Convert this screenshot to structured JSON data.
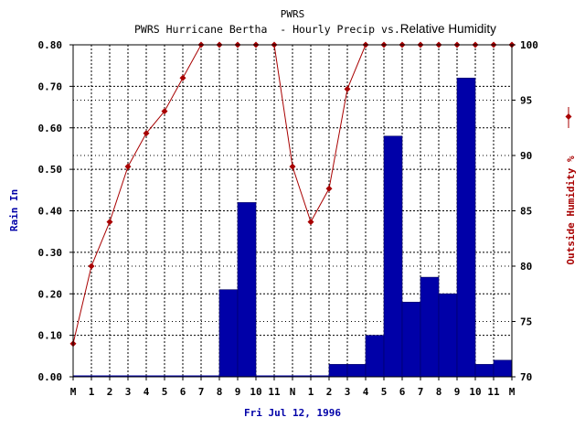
{
  "chart_data": {
    "type": "bar",
    "header": "PWRS",
    "title_prefix": "PWRS Hurricane Bertha  - Hourly Precip vs.",
    "title_suffix": "Relative Humidity",
    "xlabel": "Fri Jul 12, 1996",
    "ylabel": "Rain In",
    "y2label": "Outside Humidity %",
    "colors": {
      "bar": "#0000a8",
      "bar_edge": "#000060",
      "line": "#a80000",
      "left_axis_text": "#0000a8",
      "right_axis_text": "#a80000",
      "xlabel_text": "#0000a8"
    },
    "grid": true,
    "ylim": [
      0,
      0.8
    ],
    "y_ticks": [
      "0.00",
      "0.10",
      "0.20",
      "0.30",
      "0.40",
      "0.50",
      "0.60",
      "0.70",
      "0.80"
    ],
    "y2lim": [
      70,
      100
    ],
    "y2_ticks": [
      "70",
      "75",
      "80",
      "85",
      "90",
      "95",
      "100"
    ],
    "x_tick_labels": [
      "M",
      "1",
      "2",
      "3",
      "4",
      "5",
      "6",
      "7",
      "8",
      "9",
      "10",
      "11",
      "N",
      "1",
      "2",
      "3",
      "4",
      "5",
      "6",
      "7",
      "8",
      "9",
      "10",
      "11",
      "M"
    ],
    "series": [
      {
        "kind": "bar",
        "axis": "left",
        "values": [
          0,
          0,
          0,
          0,
          0,
          0,
          0,
          0,
          0.21,
          0.42,
          0,
          0,
          0,
          0,
          0.03,
          0.03,
          0.1,
          0.58,
          0.18,
          0.24,
          0.2,
          0.72,
          0.03,
          0.04
        ]
      },
      {
        "name": "Outside Humidity %",
        "kind": "line",
        "axis": "right",
        "marker": "diamond",
        "values": [
          73,
          80,
          84,
          89,
          92,
          94,
          97,
          100,
          100,
          100,
          100,
          100,
          89,
          84,
          87,
          96,
          100,
          100,
          100,
          100,
          100,
          100,
          100,
          100,
          100
        ]
      }
    ]
  }
}
